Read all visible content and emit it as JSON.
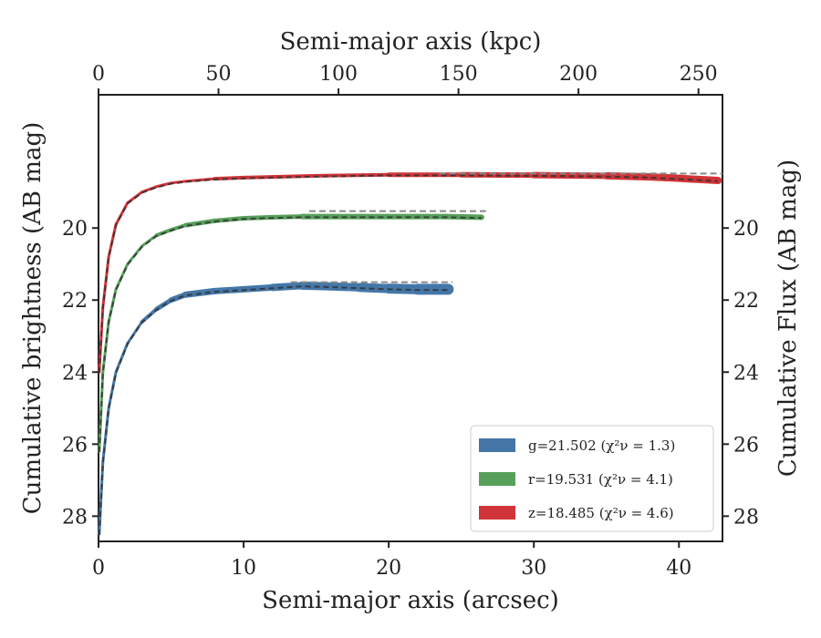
{
  "chart_data": {
    "type": "line",
    "xlabel": "Semi-major axis (arcsec)",
    "x2label": "Semi-major axis (kpc)",
    "ylabel": "Cumulative brightness (AB mag)",
    "y2label": "Cumulative Flux (AB mag)",
    "xlim": [
      0,
      43
    ],
    "x2lim": [
      0,
      260
    ],
    "ylim": [
      28.7,
      16.3
    ],
    "y_inverted": true,
    "xticks": [
      "0",
      "10",
      "20",
      "30",
      "40"
    ],
    "x2ticks": [
      "0",
      "50",
      "100",
      "150",
      "200",
      "250"
    ],
    "yticks": [
      "20",
      "22",
      "24",
      "26",
      "28"
    ],
    "legend_position": "lower-right",
    "model_line_color": "#888888",
    "series": [
      {
        "name": "g=21.502",
        "chi_label": "(χ²ν = 1.3)",
        "color": "#4477a8",
        "asymptote": 21.502,
        "xmax": 24.1,
        "x": [
          0.05,
          0.3,
          0.7,
          1.2,
          2,
          3,
          4,
          5,
          6,
          8,
          10,
          12,
          14,
          16,
          18,
          20,
          22,
          24.1
        ],
        "y": [
          28.5,
          26.5,
          25.0,
          24.0,
          23.2,
          22.6,
          22.25,
          22.0,
          21.85,
          21.75,
          21.7,
          21.65,
          21.6,
          21.62,
          21.65,
          21.68,
          21.7,
          21.7
        ],
        "band_width": [
          3,
          3,
          3,
          3,
          3,
          4,
          5,
          6,
          7,
          7,
          7,
          8,
          9,
          9,
          10,
          11,
          12,
          14
        ]
      },
      {
        "name": "r=19.531",
        "chi_label": "(χ²ν = 4.1)",
        "color": "#57a05a",
        "asymptote": 19.531,
        "xmax": 26.4,
        "x": [
          0.05,
          0.3,
          0.7,
          1.2,
          2,
          3,
          4,
          5,
          6,
          8,
          10,
          12,
          14,
          16,
          18,
          20,
          22,
          24,
          26.4
        ],
        "y": [
          26.2,
          24.0,
          22.6,
          21.7,
          21.0,
          20.5,
          20.2,
          20.05,
          19.92,
          19.8,
          19.73,
          19.7,
          19.68,
          19.68,
          19.68,
          19.68,
          19.68,
          19.68,
          19.7
        ],
        "band_width": [
          3,
          3,
          3,
          3,
          3,
          3,
          4,
          4,
          5,
          5,
          5,
          5,
          6,
          6,
          6,
          6,
          6,
          6,
          7
        ]
      },
      {
        "name": "z=18.485",
        "chi_label": "(χ²ν = 4.6)",
        "color": "#d13438",
        "asymptote": 18.485,
        "xmax": 42.7,
        "x": [
          0.05,
          0.3,
          0.7,
          1.2,
          2,
          3,
          4,
          5,
          6,
          8,
          10,
          12,
          15,
          20,
          25,
          30,
          35,
          38,
          40,
          42.7
        ],
        "y": [
          24.0,
          22.2,
          20.8,
          19.9,
          19.3,
          19.0,
          18.85,
          18.75,
          18.7,
          18.63,
          18.6,
          18.58,
          18.55,
          18.52,
          18.52,
          18.53,
          18.55,
          18.58,
          18.62,
          18.68
        ],
        "band_width": [
          3,
          3,
          3,
          3,
          3,
          3,
          3,
          3,
          3,
          4,
          4,
          4,
          4,
          5,
          6,
          7,
          8,
          8,
          8,
          9
        ]
      }
    ]
  }
}
